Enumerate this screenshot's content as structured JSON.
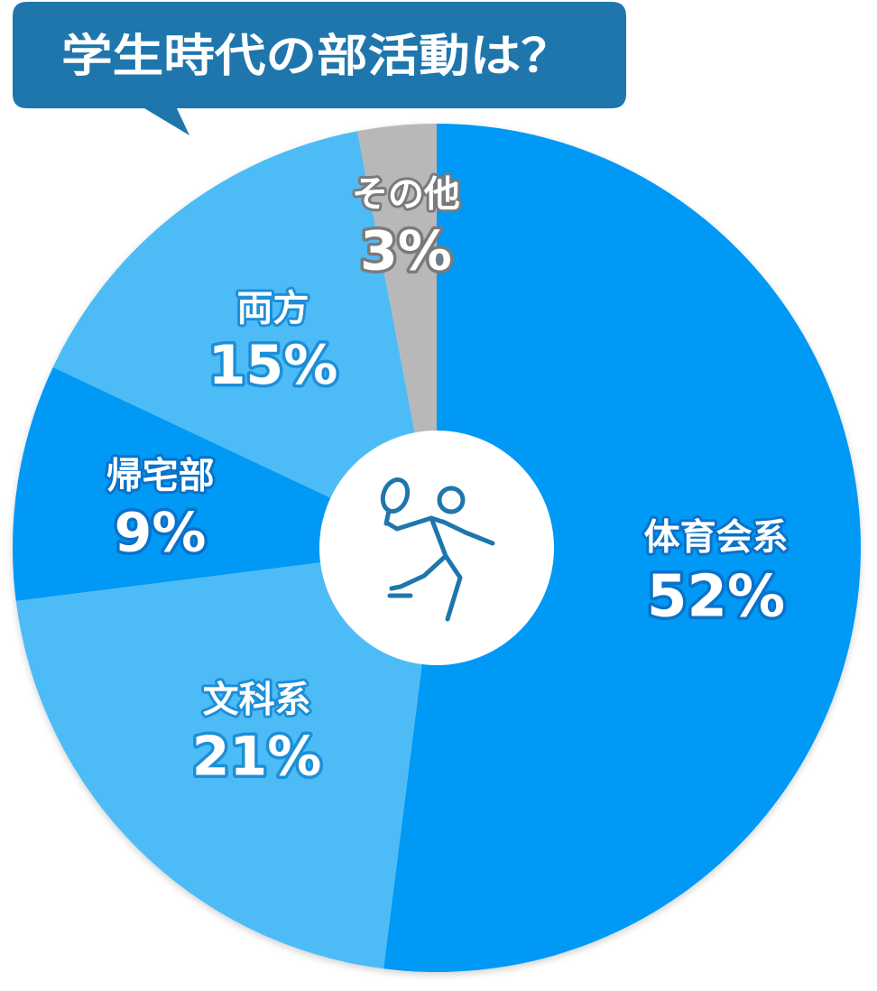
{
  "chart_data": {
    "type": "pie",
    "title": "学生時代の部活動は？",
    "slices": [
      {
        "label": "体育会系",
        "value": 52,
        "value_label": "52%",
        "color": "#0599f5",
        "outline": "#0a72c8"
      },
      {
        "label": "文科系",
        "value": 21,
        "value_label": "21%",
        "color": "#4dbcf6",
        "outline": "#1c8fd8"
      },
      {
        "label": "帰宅部",
        "value": 9,
        "value_label": "9%",
        "color": "#0599f5",
        "outline": "#0a72c8"
      },
      {
        "label": "両方",
        "value": 15,
        "value_label": "15%",
        "color": "#4dbcf6",
        "outline": "#1c8fd8"
      },
      {
        "label": "その他",
        "value": 3,
        "value_label": "3%",
        "color": "#b8b8b8",
        "outline": "#7a7a7a"
      }
    ],
    "start_angle": "top",
    "direction": "clockwise",
    "legend": "none"
  },
  "center_icon": "tennis-player-icon",
  "colors": {
    "title_bg": "#1e76ad",
    "center_circle": "#ffffff",
    "icon_stroke": "#1e76ad"
  }
}
